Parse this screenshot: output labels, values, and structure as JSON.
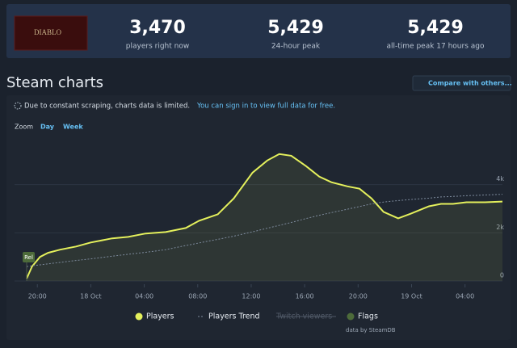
{
  "header": {
    "logo": "DIABLO",
    "stats": [
      {
        "value": "3,470",
        "label": "players right now"
      },
      {
        "value": "5,429",
        "label": "24-hour peak"
      },
      {
        "value": "5,429",
        "label": "all-time peak 17 hours ago"
      }
    ]
  },
  "section_title": "Steam charts",
  "compare_button": "Compare with others...",
  "notice": {
    "text": "Due to constant scraping, charts data is limited.",
    "link": "You can sign in to view full data for free."
  },
  "zoom": {
    "label": "Zoom",
    "options": [
      "Day",
      "Week"
    ]
  },
  "chart_data": {
    "type": "line",
    "x": [
      19.2,
      19.6,
      20.2,
      20.8,
      21.7,
      22.9,
      24,
      25.6,
      26.8,
      28.1,
      29.6,
      31.1,
      32.1,
      33.5,
      34.7,
      36.1,
      37.2,
      38.1,
      39,
      40.1,
      41.1,
      42,
      43.2,
      44.1,
      45,
      45.9,
      47,
      48.1,
      49.3,
      50.2,
      51.1,
      52.1,
      53.5,
      54.8
    ],
    "series": [
      {
        "name": "Players",
        "color": "#e4f05c",
        "area": true,
        "values": [
          100,
          600,
          1000,
          1170,
          1300,
          1430,
          1600,
          1770,
          1830,
          1970,
          2030,
          2200,
          2500,
          2770,
          3430,
          4500,
          5000,
          5270,
          5200,
          4770,
          4330,
          4100,
          3930,
          3830,
          3430,
          2870,
          2600,
          2830,
          3100,
          3200,
          3200,
          3270,
          3270,
          3300
        ]
      },
      {
        "name": "Players Trend",
        "color": "#7d8a9c",
        "dashed": true,
        "values": [
          600,
          630,
          670,
          710,
          770,
          850,
          920,
          1030,
          1110,
          1190,
          1300,
          1470,
          1580,
          1730,
          1860,
          2040,
          2190,
          2310,
          2430,
          2590,
          2730,
          2840,
          2980,
          3090,
          3200,
          3280,
          3340,
          3390,
          3440,
          3490,
          3510,
          3540,
          3570,
          3600
        ]
      }
    ],
    "inactive_legend": [
      "Twitch viewers"
    ],
    "flags": {
      "name": "Flags",
      "color": "#4d6b3a",
      "points": [
        {
          "x": 19.2,
          "label": "Rel"
        }
      ]
    },
    "xlim": [
      19.2,
      54.8
    ],
    "xticks": [
      {
        "value": 20,
        "label": "20:00"
      },
      {
        "value": 24,
        "label": "18 Oct"
      },
      {
        "value": 28,
        "label": "04:00"
      },
      {
        "value": 32,
        "label": "08:00"
      },
      {
        "value": 36,
        "label": "12:00"
      },
      {
        "value": 40,
        "label": "16:00"
      },
      {
        "value": 44,
        "label": "20:00"
      },
      {
        "value": 48,
        "label": "19 Oct"
      },
      {
        "value": 52,
        "label": "04:00"
      }
    ],
    "ylim": [
      0,
      5900
    ],
    "yticks": [
      0,
      {
        "value": 2000,
        "label": "2k"
      },
      {
        "value": 4000,
        "label": "4k"
      }
    ],
    "grid": true,
    "source": "data by SteamDB"
  }
}
